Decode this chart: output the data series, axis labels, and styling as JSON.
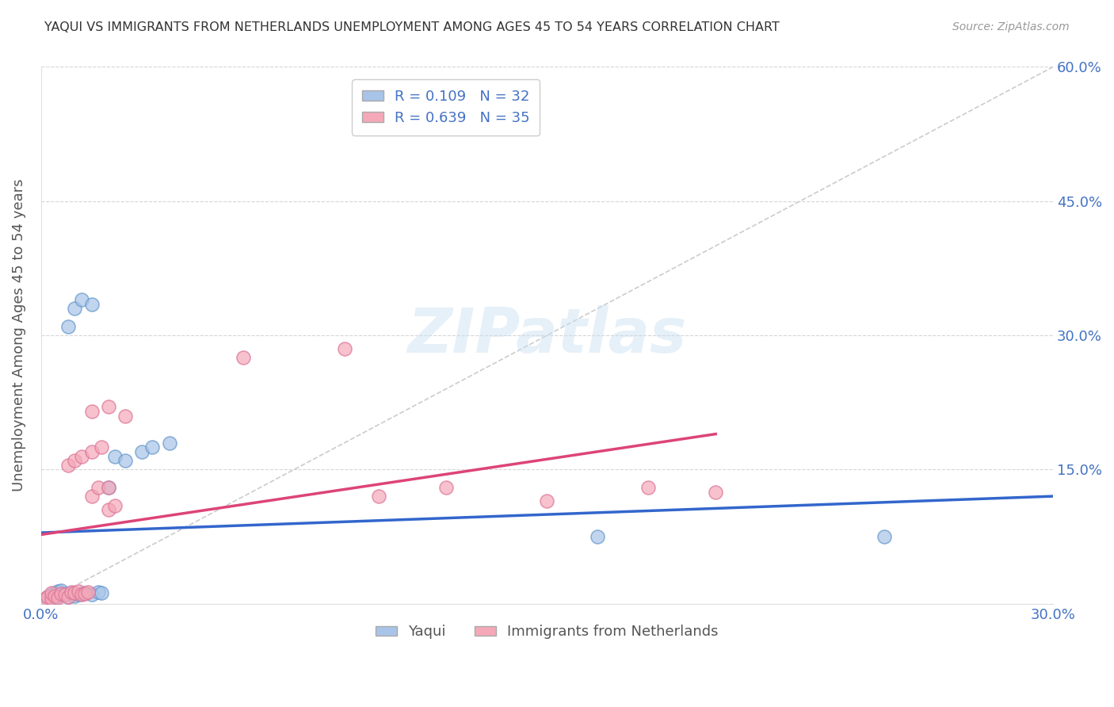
{
  "title": "YAQUI VS IMMIGRANTS FROM NETHERLANDS UNEMPLOYMENT AMONG AGES 45 TO 54 YEARS CORRELATION CHART",
  "source": "Source: ZipAtlas.com",
  "ylabel": "Unemployment Among Ages 45 to 54 years",
  "xlim": [
    0.0,
    0.3
  ],
  "ylim": [
    0.0,
    0.6
  ],
  "yaqui_color": "#a8c4e8",
  "yaqui_edge_color": "#6699cc",
  "netherlands_color": "#f4a8b8",
  "netherlands_edge_color": "#dd7799",
  "yaqui_line_color": "#3366cc",
  "netherlands_line_color": "#dd4477",
  "diag_line_color": "#cccccc",
  "R_yaqui": 0.109,
  "N_yaqui": 32,
  "R_netherlands": 0.639,
  "N_netherlands": 35,
  "legend_label_yaqui": "Yaqui",
  "legend_label_netherlands": "Immigrants from Netherlands",
  "watermark": "ZIPatlas",
  "yaqui_scatter_x": [
    0.001,
    0.002,
    0.003,
    0.003,
    0.004,
    0.004,
    0.005,
    0.005,
    0.006,
    0.006,
    0.007,
    0.008,
    0.009,
    0.01,
    0.011,
    0.012,
    0.013,
    0.015,
    0.017,
    0.018,
    0.02,
    0.022,
    0.025,
    0.03,
    0.033,
    0.038,
    0.008,
    0.01,
    0.012,
    0.015,
    0.165,
    0.25
  ],
  "yaqui_scatter_y": [
    0.005,
    0.008,
    0.006,
    0.01,
    0.007,
    0.012,
    0.009,
    0.014,
    0.01,
    0.015,
    0.011,
    0.008,
    0.012,
    0.009,
    0.01,
    0.011,
    0.012,
    0.01,
    0.013,
    0.012,
    0.13,
    0.165,
    0.16,
    0.17,
    0.175,
    0.18,
    0.31,
    0.33,
    0.34,
    0.335,
    0.075,
    0.075
  ],
  "netherlands_scatter_x": [
    0.001,
    0.002,
    0.003,
    0.003,
    0.004,
    0.005,
    0.006,
    0.007,
    0.008,
    0.009,
    0.01,
    0.011,
    0.012,
    0.013,
    0.014,
    0.015,
    0.017,
    0.02,
    0.022,
    0.008,
    0.01,
    0.012,
    0.015,
    0.018,
    0.02,
    0.06,
    0.09,
    0.015,
    0.02,
    0.025,
    0.1,
    0.12,
    0.15,
    0.18,
    0.2
  ],
  "netherlands_scatter_y": [
    0.005,
    0.008,
    0.006,
    0.012,
    0.009,
    0.007,
    0.011,
    0.01,
    0.008,
    0.013,
    0.012,
    0.014,
    0.01,
    0.011,
    0.013,
    0.12,
    0.13,
    0.105,
    0.11,
    0.155,
    0.16,
    0.165,
    0.17,
    0.175,
    0.13,
    0.275,
    0.285,
    0.215,
    0.22,
    0.21,
    0.12,
    0.13,
    0.115,
    0.13,
    0.125
  ]
}
